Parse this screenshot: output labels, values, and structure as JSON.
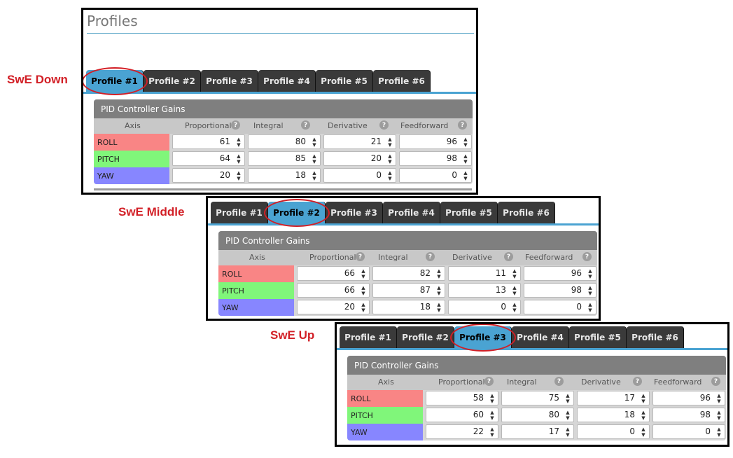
{
  "annotations": [
    "SwE Down",
    "SwE Middle",
    "SwE Up"
  ],
  "panel1_title": "Profiles",
  "tabs": [
    "Profile #1",
    "Profile #2",
    "Profile #3",
    "Profile #4",
    "Profile #5",
    "Profile #6"
  ],
  "section_title": "PID Controller Gains",
  "columns": {
    "axis": "Axis",
    "proportional": "Proportional",
    "integral": "Integral",
    "derivative": "Derivative",
    "feedforward": "Feedforward",
    "help": "?"
  },
  "axes": [
    "ROLL",
    "PITCH",
    "YAW"
  ],
  "colors": {
    "roll": "#f98585",
    "pitch": "#80f67a",
    "yaw": "#8786ff",
    "active_tab": "#4aa3d2",
    "annotation": "#d21f26"
  },
  "icons": {
    "help": "question-circle-icon",
    "spinner": "up-down-spinner-icon"
  },
  "profiles": [
    {
      "active_tab_index": 0,
      "rows": [
        [
          61,
          80,
          21,
          96
        ],
        [
          64,
          85,
          20,
          98
        ],
        [
          20,
          18,
          0,
          0
        ]
      ]
    },
    {
      "active_tab_index": 1,
      "rows": [
        [
          66,
          82,
          11,
          96
        ],
        [
          66,
          87,
          13,
          98
        ],
        [
          20,
          18,
          0,
          0
        ]
      ]
    },
    {
      "active_tab_index": 2,
      "rows": [
        [
          58,
          75,
          17,
          96
        ],
        [
          60,
          80,
          18,
          98
        ],
        [
          22,
          17,
          0,
          0
        ]
      ]
    }
  ]
}
